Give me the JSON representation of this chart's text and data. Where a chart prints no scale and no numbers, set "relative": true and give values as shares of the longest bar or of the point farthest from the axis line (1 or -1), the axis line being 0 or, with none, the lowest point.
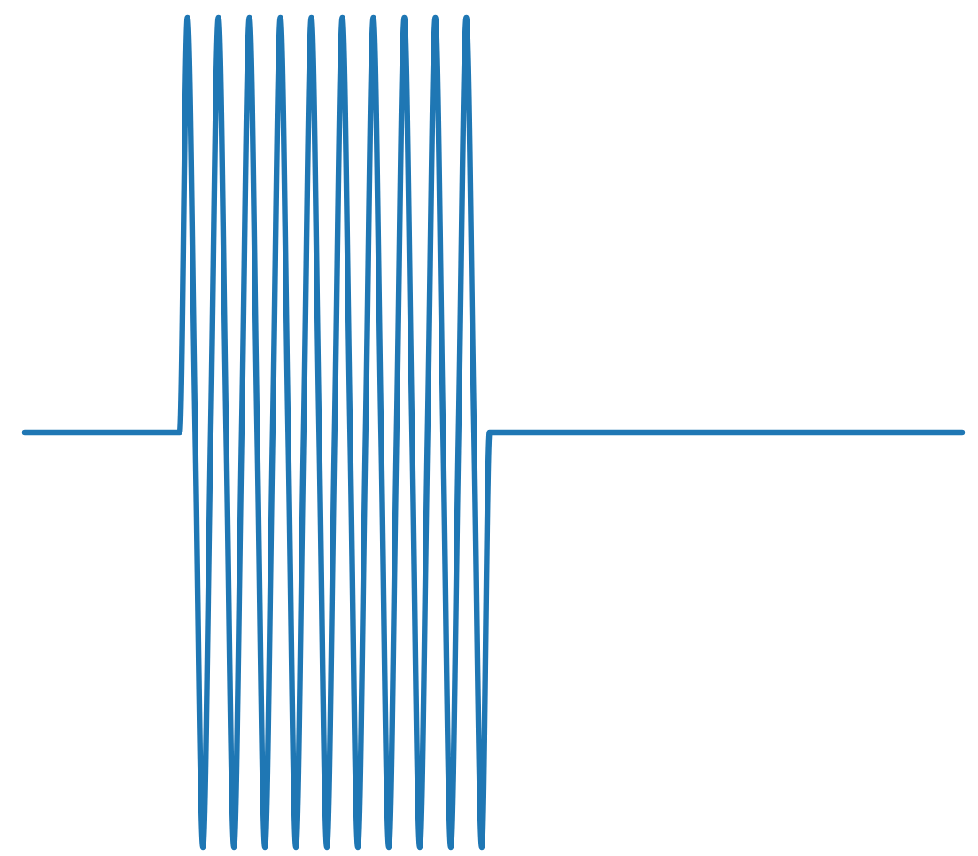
{
  "chart_data": {
    "type": "line",
    "relative": true,
    "categories": [
      null,
      null,
      null,
      null,
      null,
      null,
      null,
      null,
      null,
      null,
      null,
      null,
      null,
      null,
      null,
      null,
      null,
      null,
      null,
      null,
      null,
      null,
      null,
      null,
      null,
      null,
      null,
      null,
      null,
      null,
      null,
      null,
      null,
      null,
      null,
      null,
      null,
      null,
      null,
      null,
      null,
      null,
      null,
      null,
      null,
      null,
      null,
      null,
      null,
      null,
      null,
      null,
      null,
      null,
      null,
      null,
      null,
      null,
      null,
      null,
      null,
      null,
      null,
      null,
      null,
      null,
      null,
      null,
      null,
      null,
      null,
      null,
      null,
      null,
      null,
      null,
      null,
      null,
      null,
      null,
      null,
      null,
      null,
      null,
      null,
      null,
      null,
      null,
      null,
      null,
      null,
      null,
      null,
      null,
      null,
      null,
      null,
      null,
      null,
      null,
      null,
      null,
      null,
      null,
      null,
      null,
      null,
      null,
      null,
      null,
      null,
      null,
      null,
      null,
      null,
      null,
      null,
      null,
      null,
      null,
      null,
      null
    ],
    "series": [
      {
        "color": "#1f77b4",
        "values": [
          0.5,
          0.5,
          0.5,
          0.5,
          0.5,
          0.5,
          0.5,
          0.5,
          0.5,
          0.5,
          0.5,
          0.5,
          0.5,
          0.5,
          0.5,
          0.5,
          0.5,
          0.5,
          0.5,
          0.5,
          0.5,
          1,
          0.5,
          0,
          0.5,
          1,
          0.5,
          0,
          0.5,
          1,
          0.5,
          0,
          0.5,
          1,
          0.5,
          0,
          0.5,
          1,
          0.5,
          0,
          0.5,
          1,
          0.5,
          0,
          0.5,
          1,
          0.5,
          0,
          0.5,
          1,
          0.5,
          0,
          0.5,
          1,
          0.5,
          0,
          0.5,
          1,
          0.5,
          0,
          0.5,
          0.5,
          0.5,
          0.5,
          0.5,
          0.5,
          0.5,
          0.5,
          0.5,
          0.5,
          0.5,
          0.5,
          0.5,
          0.5,
          0.5,
          0.5,
          0.5,
          0.5,
          0.5,
          0.5,
          0.5,
          0.5,
          0.5,
          0.5,
          0.5,
          0.5,
          0.5,
          0.5,
          0.5,
          0.5,
          0.5,
          0.5,
          0.5,
          0.5,
          0.5,
          0.5,
          0.5,
          0.5,
          0.5,
          0.5,
          0.5,
          0.5,
          0.5,
          0.5,
          0.5,
          0.5,
          0.5,
          0.5,
          0.5,
          0.5,
          0.5,
          0.5,
          0.5,
          0.5,
          0.5,
          0.5,
          0.5,
          0.5,
          0.5,
          0.5,
          0.5,
          0.5
        ]
      }
    ]
  }
}
